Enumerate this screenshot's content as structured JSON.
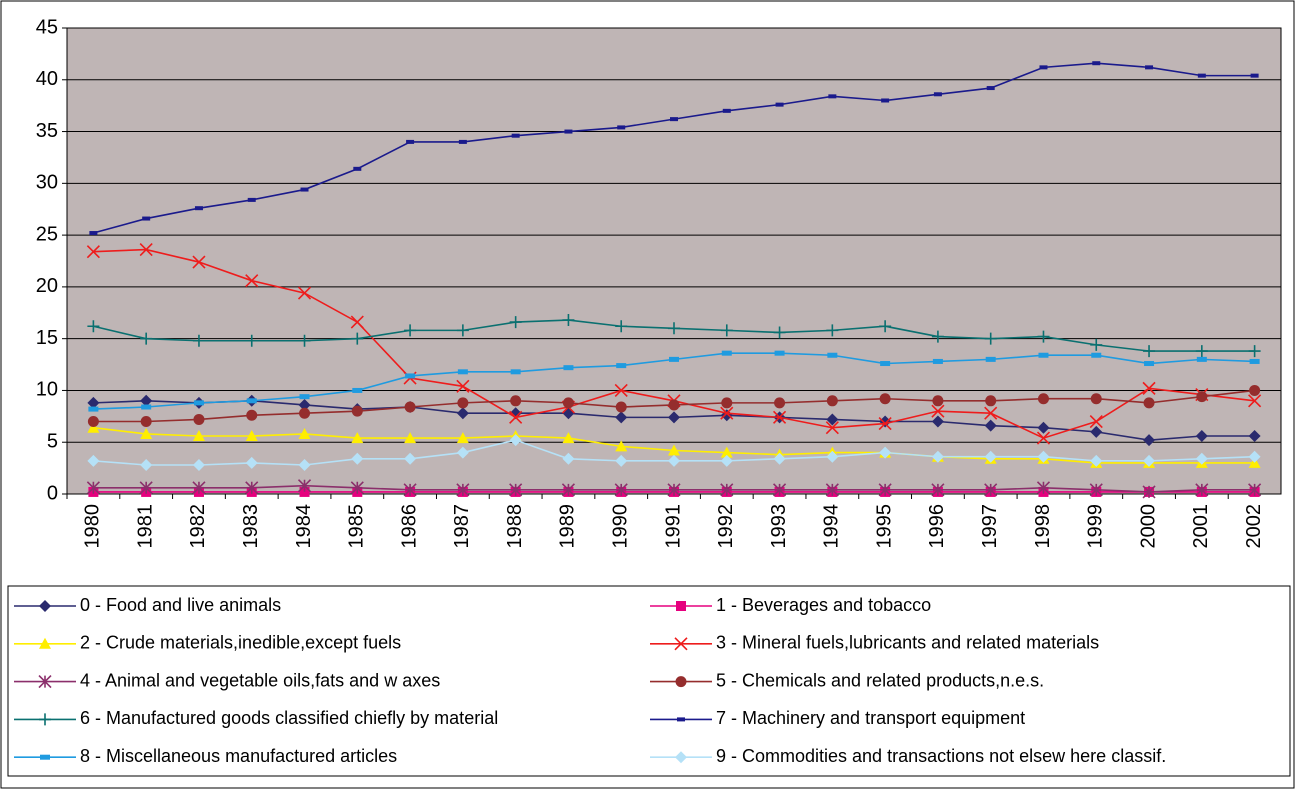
{
  "chart_data": {
    "type": "line",
    "categories": [
      "1980",
      "1981",
      "1982",
      "1983",
      "1984",
      "1985",
      "1986",
      "1987",
      "1988",
      "1989",
      "1990",
      "1991",
      "1992",
      "1993",
      "1994",
      "1995",
      "1996",
      "1997",
      "1998",
      "1999",
      "2000",
      "2001",
      "2002"
    ],
    "ylim": [
      0,
      45
    ],
    "yticks": [
      0,
      5,
      10,
      15,
      20,
      25,
      30,
      35,
      40,
      45
    ],
    "grid": true,
    "series": [
      {
        "name": "0 - Food and live animals",
        "color": "#2a2a6e",
        "marker": "diamond",
        "values": [
          8.8,
          9.0,
          8.8,
          9.0,
          8.6,
          8.2,
          8.4,
          7.8,
          7.8,
          7.8,
          7.4,
          7.4,
          7.6,
          7.4,
          7.2,
          7.0,
          7.0,
          6.6,
          6.4,
          6.0,
          5.2,
          5.6,
          5.6
        ]
      },
      {
        "name": "1 - Beverages and tobacco",
        "color": "#e6007e",
        "marker": "square",
        "values": [
          0.2,
          0.2,
          0.2,
          0.2,
          0.2,
          0.2,
          0.2,
          0.2,
          0.2,
          0.2,
          0.2,
          0.2,
          0.2,
          0.2,
          0.2,
          0.2,
          0.2,
          0.2,
          0.2,
          0.2,
          0.2,
          0.2,
          0.2
        ]
      },
      {
        "name": "2 - Crude materials,inedible,except fuels",
        "color": "#ffee00",
        "marker": "triangle",
        "values": [
          6.4,
          5.8,
          5.6,
          5.6,
          5.8,
          5.4,
          5.4,
          5.4,
          5.6,
          5.4,
          4.6,
          4.2,
          4.0,
          3.8,
          4.0,
          4.0,
          3.6,
          3.4,
          3.4,
          3.0,
          3.0,
          3.0,
          3.0
        ]
      },
      {
        "name": "3 - Mineral fuels,lubricants and related materials",
        "color": "#ee1c1c",
        "marker": "x",
        "values": [
          23.4,
          23.6,
          22.4,
          20.6,
          19.4,
          16.6,
          11.2,
          10.4,
          7.4,
          8.4,
          10.0,
          9.0,
          7.8,
          7.4,
          6.4,
          6.8,
          8.0,
          7.8,
          5.4,
          7.0,
          10.2,
          9.6,
          9.0
        ]
      },
      {
        "name": "4 - Animal and vegetable oils,fats and w axes",
        "color": "#8b2f6b",
        "marker": "star",
        "values": [
          0.6,
          0.6,
          0.6,
          0.6,
          0.8,
          0.6,
          0.4,
          0.4,
          0.4,
          0.4,
          0.4,
          0.4,
          0.4,
          0.4,
          0.4,
          0.4,
          0.4,
          0.4,
          0.6,
          0.4,
          0.2,
          0.4,
          0.4
        ]
      },
      {
        "name": "5 - Chemicals and related products,n.e.s.",
        "color": "#952d2d",
        "marker": "circle",
        "values": [
          7.0,
          7.0,
          7.2,
          7.6,
          7.8,
          8.0,
          8.4,
          8.8,
          9.0,
          8.8,
          8.4,
          8.6,
          8.8,
          8.8,
          9.0,
          9.2,
          9.0,
          9.0,
          9.2,
          9.2,
          8.8,
          9.4,
          10.0
        ]
      },
      {
        "name": "6 - Manufactured goods classified chiefly by material",
        "color": "#0a7070",
        "marker": "plus",
        "values": [
          16.2,
          15.0,
          14.8,
          14.8,
          14.8,
          15.0,
          15.8,
          15.8,
          16.6,
          16.8,
          16.2,
          16.0,
          15.8,
          15.6,
          15.8,
          16.2,
          15.2,
          15.0,
          15.2,
          14.4,
          13.8,
          13.8,
          13.8
        ]
      },
      {
        "name": "7 - Machinery and transport equipment",
        "color": "#1a1a8c",
        "marker": "dash",
        "values": [
          25.2,
          26.6,
          27.6,
          28.4,
          29.4,
          31.4,
          34.0,
          34.0,
          34.6,
          35.0,
          35.4,
          36.2,
          37.0,
          37.6,
          38.4,
          38.0,
          38.6,
          39.2,
          41.2,
          41.6,
          41.2,
          40.4,
          40.4
        ]
      },
      {
        "name": "8 - Miscellaneous manufactured articles",
        "color": "#1f9be0",
        "marker": "bar",
        "values": [
          8.2,
          8.4,
          8.8,
          9.0,
          9.4,
          10.0,
          11.4,
          11.8,
          11.8,
          12.2,
          12.4,
          13.0,
          13.6,
          13.6,
          13.4,
          12.6,
          12.8,
          13.0,
          13.4,
          13.4,
          12.6,
          13.0,
          12.8
        ]
      },
      {
        "name": "9 - Commodities and transactions not elsew here classif.",
        "color": "#b5e1f7",
        "marker": "diamond",
        "values": [
          3.2,
          2.8,
          2.8,
          3.0,
          2.8,
          3.4,
          3.4,
          4.0,
          5.2,
          3.4,
          3.2,
          3.2,
          3.2,
          3.4,
          3.6,
          4.0,
          3.6,
          3.6,
          3.6,
          3.2,
          3.2,
          3.4,
          3.6
        ]
      }
    ]
  }
}
